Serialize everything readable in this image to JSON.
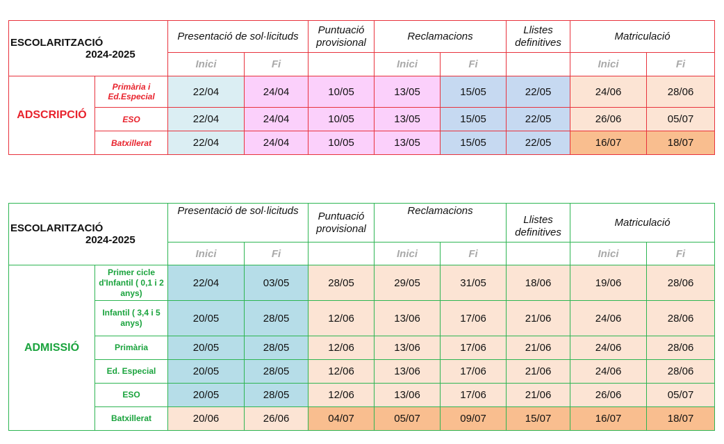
{
  "adscripcio": {
    "title_line1": "ESCOLARITZACIÓ",
    "title_line2": "2024-2025",
    "headers": [
      "Presentació de sol·licituds",
      "Puntuació provisional",
      "Reclamacions",
      "Llistes definitives",
      "Matriculació"
    ],
    "sub_inici": "Inici",
    "sub_fi": "Fi",
    "section_label": "ADSCRIPCIÓ",
    "rows": [
      {
        "category": "Primària i Ed.Especial",
        "values": [
          "22/04",
          "24/04",
          "10/05",
          "13/05",
          "15/05",
          "22/05",
          "24/06",
          "28/06"
        ]
      },
      {
        "category": "ESO",
        "values": [
          "22/04",
          "24/04",
          "10/05",
          "13/05",
          "15/05",
          "22/05",
          "26/06",
          "05/07"
        ]
      },
      {
        "category": "Batxillerat",
        "values": [
          "22/04",
          "24/04",
          "10/05",
          "13/05",
          "15/05",
          "22/05",
          "16/07",
          "18/07"
        ]
      }
    ]
  },
  "admissio": {
    "title_line1": "ESCOLARITZACIÓ",
    "title_line2": "2024-2025",
    "headers": [
      "Presentació de sol·licituds",
      "Puntuació provisional",
      "Reclamacions",
      "Llistes definitives",
      "Matriculació"
    ],
    "sub_inici": "Inici",
    "sub_fi": "Fi",
    "section_label": "ADMISSIÓ",
    "rows": [
      {
        "category": "Primer cicle d'Infantil ( 0,1 i 2 anys)",
        "values": [
          "22/04",
          "03/05",
          "28/05",
          "29/05",
          "31/05",
          "18/06",
          "19/06",
          "28/06"
        ]
      },
      {
        "category": "Infantil ( 3,4 i 5 anys)",
        "values": [
          "20/05",
          "28/05",
          "12/06",
          "13/06",
          "17/06",
          "21/06",
          "24/06",
          "28/06"
        ]
      },
      {
        "category": "Primària",
        "values": [
          "20/05",
          "28/05",
          "12/06",
          "13/06",
          "17/06",
          "21/06",
          "24/06",
          "28/06"
        ]
      },
      {
        "category": "Ed. Especial",
        "values": [
          "20/05",
          "28/05",
          "12/06",
          "13/06",
          "17/06",
          "21/06",
          "24/06",
          "28/06"
        ]
      },
      {
        "category": "ESO",
        "values": [
          "20/05",
          "28/05",
          "12/06",
          "13/06",
          "17/06",
          "21/06",
          "26/06",
          "05/07"
        ]
      },
      {
        "category": "Batxillerat",
        "values": [
          "20/06",
          "26/06",
          "04/07",
          "05/07",
          "09/07",
          "15/07",
          "16/07",
          "18/07"
        ]
      }
    ]
  },
  "colors": {
    "red_border": "#e8323c",
    "green_border": "#2db552",
    "light_blue": "#dbeef3",
    "pink": "#fbd0fb",
    "blue": "#c6d9f1",
    "peach": "#fce4d4",
    "orange": "#f9be8f",
    "teal": "#b6dde8"
  }
}
